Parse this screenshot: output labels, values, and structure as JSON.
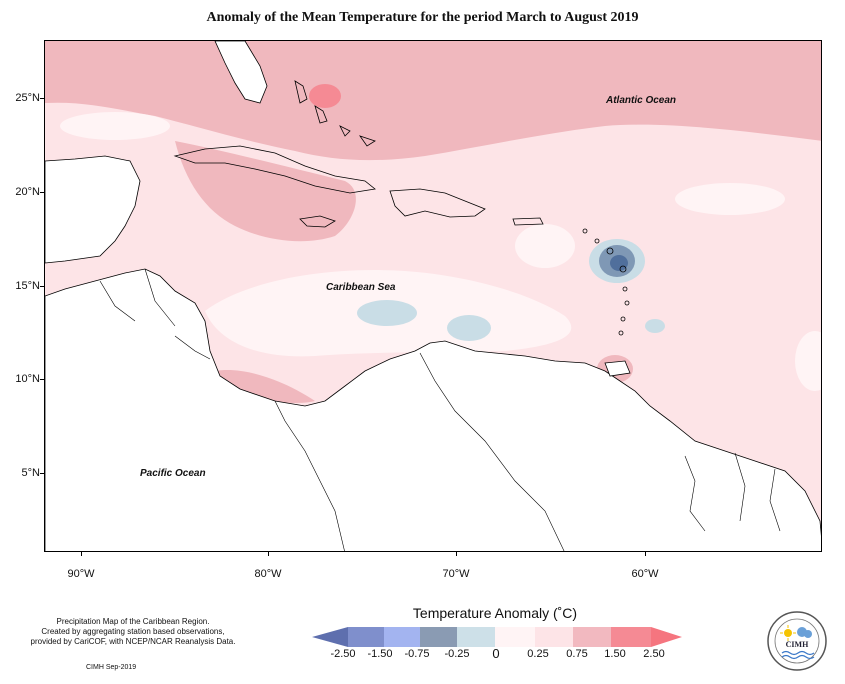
{
  "title": "Anomaly of the Mean Temperature for the period March to August 2019",
  "map": {
    "latitude_labels": [
      "25°N",
      "20°N",
      "15°N",
      "10°N",
      "5°N"
    ],
    "longitude_labels": [
      "90°W",
      "80°W",
      "70°W",
      "60°W"
    ],
    "ocean_labels": {
      "atlantic": "Atlantic Ocean",
      "caribbean": "Caribbean Sea",
      "pacific": "Pacific Ocean"
    },
    "colors": {
      "land": "#ffffff",
      "sea_base": "#fde4e7",
      "anom_0_25": "#fff4f5",
      "anom_025_075": "#fde4e7",
      "anom_075_150": "#f0b8be",
      "anom_150_250": "#f58a94",
      "anom_neg_025": "#c9dde6",
      "anom_neg_075": "#7f98b5",
      "anom_neg_150": "#506f9c"
    }
  },
  "legend": {
    "title": "Temperature Anomaly (˚C)",
    "labels": [
      "-2.50",
      "-1.50",
      "-0.75",
      "-0.25",
      "0",
      "0.25",
      "0.75",
      "1.50",
      "2.50"
    ],
    "colors": [
      "#5e6fae",
      "#7f8fcc",
      "#a3b4f0",
      "#8a9bb3",
      "#cde0e8",
      "#fff4f5",
      "#fde4e7",
      "#f2b9c0",
      "#f58a94",
      "#f5757f"
    ]
  },
  "credits": {
    "lines": [
      "Precipitation Map of the Caribbean Region.",
      "Created by aggregating station based observations,",
      "provided by CariCOF, with NCEP/NCAR Reanalysis Data."
    ],
    "date": "CIMH Sep-2019",
    "logo_text": "CIMH"
  }
}
